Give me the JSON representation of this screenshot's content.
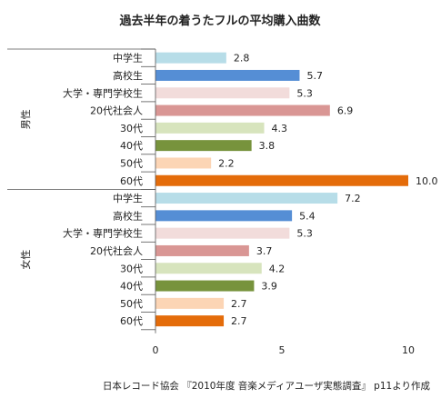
{
  "chart_data": {
    "type": "bar",
    "orientation": "horizontal",
    "title": "過去半年の着うたフルの平均購入曲数",
    "groups": [
      {
        "label": "男性",
        "categories": [
          "中学生",
          "高校生",
          "大学・専門学校生",
          "20代社会人",
          "30代",
          "40代",
          "50代",
          "60代"
        ],
        "values": [
          2.8,
          5.7,
          5.3,
          6.9,
          4.3,
          3.8,
          2.2,
          10.0
        ],
        "value_labels": [
          "2.8",
          "5.7",
          "5.3",
          "6.9",
          "4.3",
          "3.8",
          "2.2",
          "10.0"
        ]
      },
      {
        "label": "女性",
        "categories": [
          "中学生",
          "高校生",
          "大学・専門学校生",
          "20代社会人",
          "30代",
          "40代",
          "50代",
          "60代"
        ],
        "values": [
          7.2,
          5.4,
          5.3,
          3.7,
          4.2,
          3.9,
          2.7,
          2.7
        ],
        "value_labels": [
          "7.2",
          "5.4",
          "5.3",
          "3.7",
          "4.2",
          "3.9",
          "2.7",
          "2.7"
        ]
      }
    ],
    "category_colors": [
      "#b7dde8",
      "#558ed5",
      "#f2dcdb",
      "#d99694",
      "#d7e4bd",
      "#77933c",
      "#fcd5b5",
      "#e46c0a"
    ],
    "xlim": [
      0,
      10
    ],
    "x_ticks": [
      "0",
      "5",
      "10"
    ],
    "grid": false,
    "legend": "none",
    "source": "日本レコード協会 『2010年度 音楽メディアユーザ実態調査』 p11より作成"
  }
}
